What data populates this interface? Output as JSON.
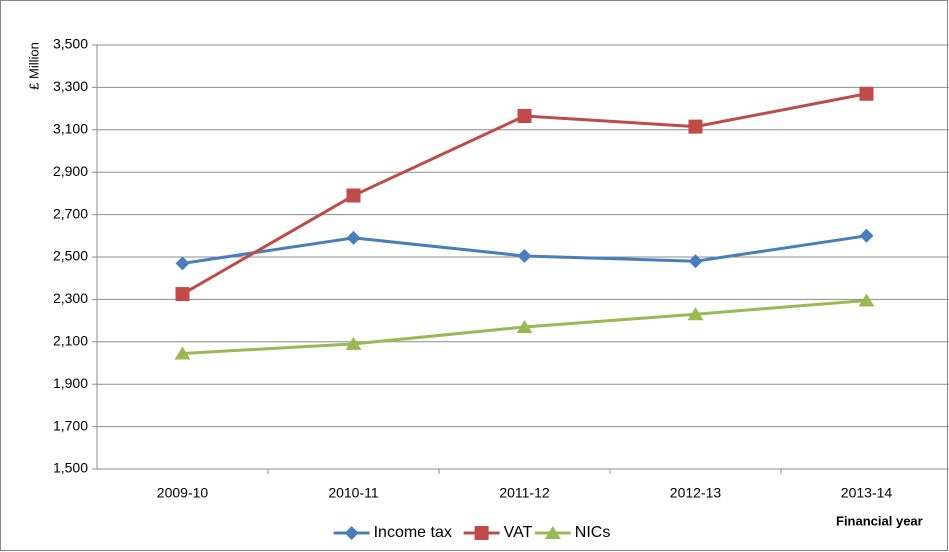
{
  "chart_data": {
    "type": "line",
    "y_label": "£ Million",
    "x_label": "Financial year",
    "categories": [
      "2009-10",
      "2010-11",
      "2011-12",
      "2012-13",
      "2013-14"
    ],
    "series": [
      {
        "name": "Income tax",
        "color": "#4a7ebb",
        "marker": "diamond",
        "values": [
          2470,
          2590,
          2505,
          2480,
          2600
        ]
      },
      {
        "name": "VAT",
        "color": "#be4b48",
        "marker": "square",
        "values": [
          2325,
          2790,
          3165,
          3115,
          3270
        ]
      },
      {
        "name": "NICs",
        "color": "#98b954",
        "marker": "triangle",
        "values": [
          2045,
          2090,
          2170,
          2230,
          2295
        ]
      }
    ],
    "ylim": [
      1500,
      3500
    ],
    "yticks": [
      {
        "value": 1500,
        "label": "1,500"
      },
      {
        "value": 1700,
        "label": "1,700"
      },
      {
        "value": 1900,
        "label": "1,900"
      },
      {
        "value": 2100,
        "label": "2,100"
      },
      {
        "value": 2300,
        "label": "2,300"
      },
      {
        "value": 2500,
        "label": "2,500"
      },
      {
        "value": 2700,
        "label": "2,700"
      },
      {
        "value": 2900,
        "label": "2,900"
      },
      {
        "value": 3100,
        "label": "3,100"
      },
      {
        "value": 3300,
        "label": "3,300"
      },
      {
        "value": 3500,
        "label": "3,500"
      }
    ],
    "grid": true,
    "legend": "bottom"
  }
}
